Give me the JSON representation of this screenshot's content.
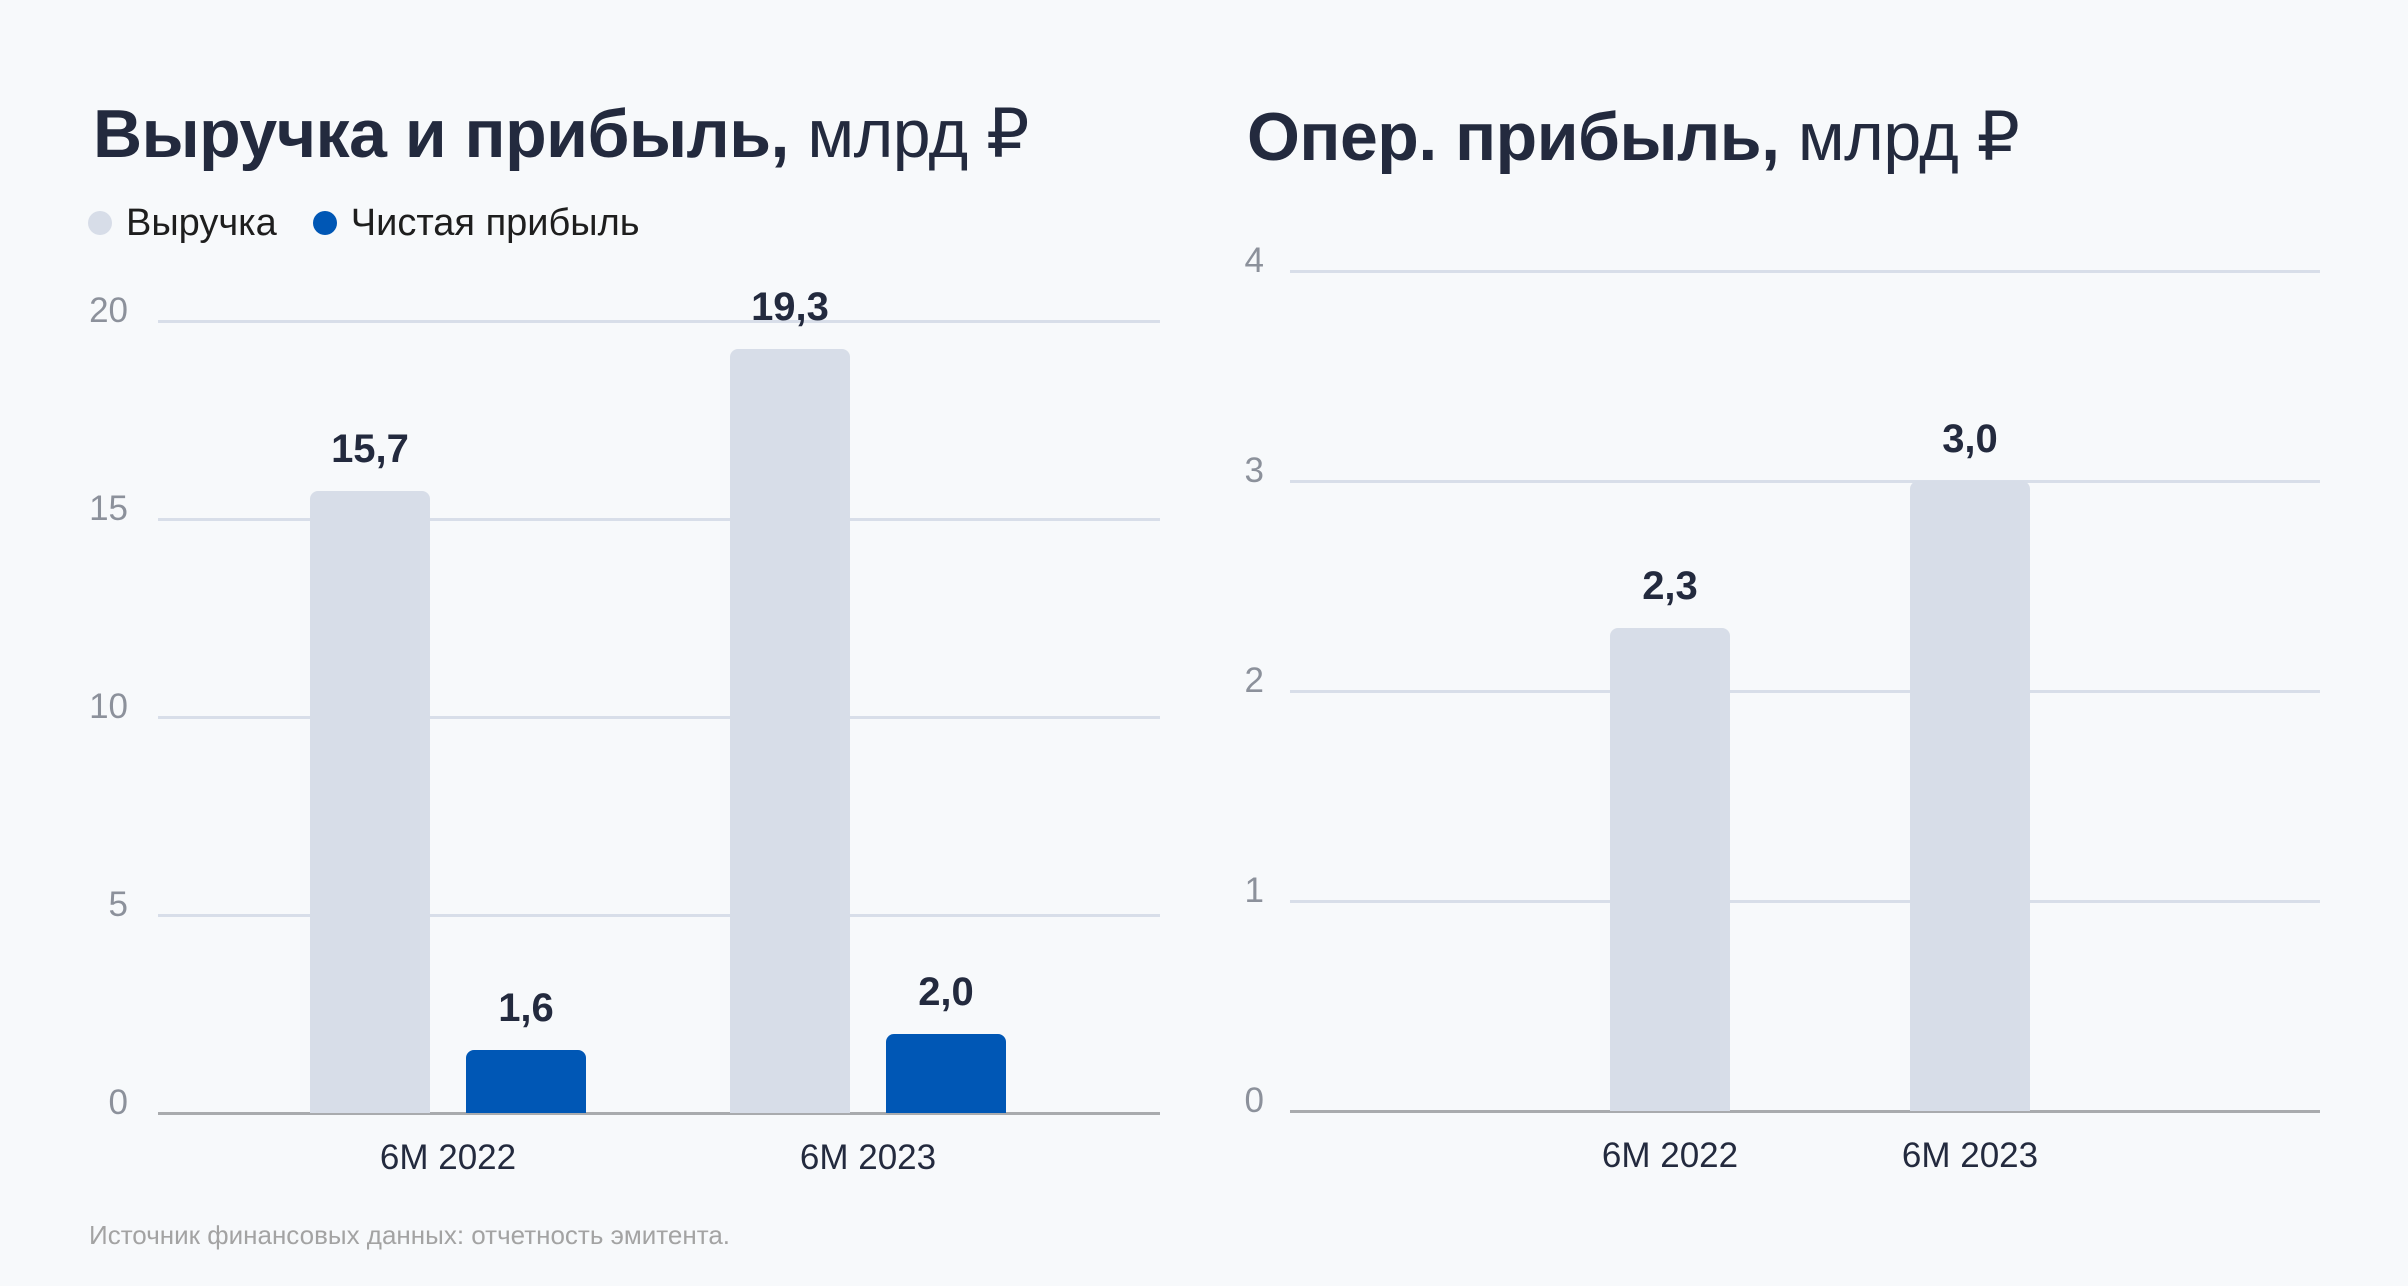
{
  "left_panel": {
    "title_bold": "Выручка и прибыль,",
    "title_unit": "млрд ₽",
    "legend": [
      {
        "label": "Выручка",
        "color": "#d7dde8"
      },
      {
        "label": "Чистая прибыль",
        "color": "#0057b5"
      }
    ]
  },
  "right_panel": {
    "title_bold": "Опер. прибыль,",
    "title_unit": "млрд ₽"
  },
  "footer": "Источник финансовых данных: отчетность эмитента.",
  "colors": {
    "background": "#f7f9fb",
    "revenue": "#d7dde8",
    "net_profit": "#0057b5",
    "operating_profit": "#d7dde8",
    "gridline": "#d8dee9",
    "axis": "#a9abae",
    "tick_text": "#8c919b",
    "label_text": "#232a3e"
  },
  "chart_data": [
    {
      "type": "bar",
      "title": "Выручка и прибыль, млрд ₽",
      "categories": [
        "6M 2022",
        "6M 2023"
      ],
      "series": [
        {
          "name": "Выручка",
          "values": [
            15.7,
            19.3
          ],
          "labels": [
            "15,7",
            "19,3"
          ],
          "color": "#d7dde8"
        },
        {
          "name": "Чистая прибыль",
          "values": [
            1.6,
            2.0
          ],
          "labels": [
            "1,6",
            "2,0"
          ],
          "color": "#0057b5"
        }
      ],
      "xlabel": "",
      "ylabel": "",
      "ylim": [
        0,
        20
      ],
      "yticks": [
        0,
        5,
        10,
        15,
        20
      ],
      "grid": true,
      "legend_position": "top-left"
    },
    {
      "type": "bar",
      "title": "Опер. прибыль, млрд ₽",
      "categories": [
        "6M 2022",
        "6M 2023"
      ],
      "series": [
        {
          "name": "Операционная прибыль",
          "values": [
            2.3,
            3.0
          ],
          "labels": [
            "2,3",
            "3,0"
          ],
          "color": "#d7dde8"
        }
      ],
      "xlabel": "",
      "ylabel": "",
      "ylim": [
        0,
        4
      ],
      "yticks": [
        0,
        1,
        2,
        3,
        4
      ],
      "grid": true,
      "legend_position": "none"
    }
  ]
}
